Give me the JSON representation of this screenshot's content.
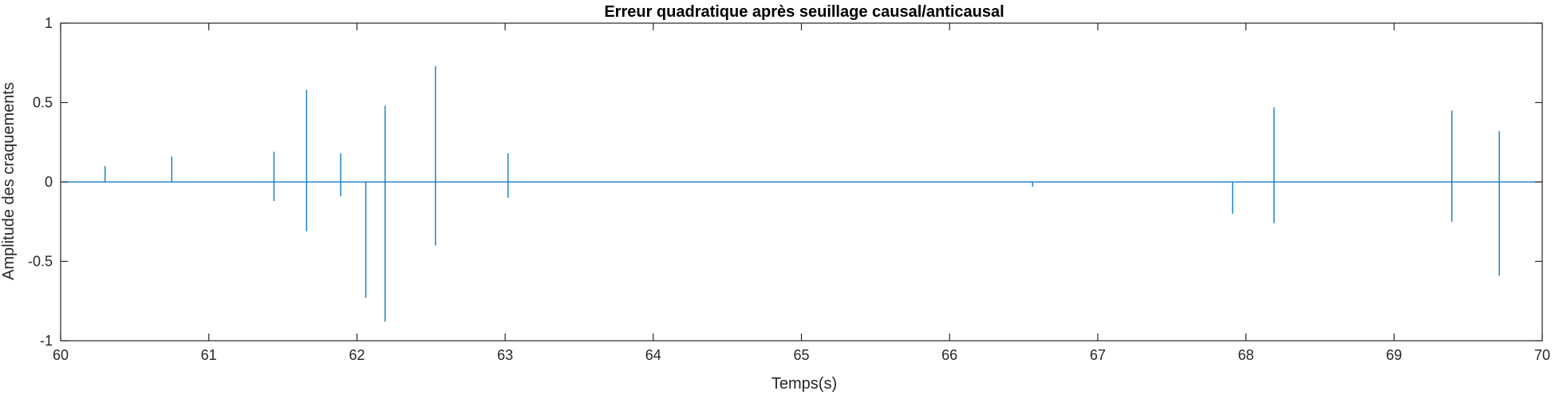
{
  "chart_data": {
    "type": "line",
    "title": "Erreur quadratique après seuillage causal/anticausal",
    "xlabel": "Temps(s)",
    "ylabel": "Amplitude des craquements",
    "xlim": [
      60,
      70
    ],
    "ylim": [
      -1,
      1
    ],
    "x_ticks": [
      60,
      61,
      62,
      63,
      64,
      65,
      66,
      67,
      68,
      69,
      70
    ],
    "x_tick_labels": [
      "60",
      "61",
      "62",
      "63",
      "64",
      "65",
      "66",
      "67",
      "68",
      "69",
      "70"
    ],
    "y_ticks": [
      1,
      0.5,
      0,
      -0.5,
      -1
    ],
    "y_tick_labels": [
      "1",
      "0.5",
      "0",
      "-0.5",
      "-1"
    ],
    "grid": false,
    "box": true,
    "series": [
      {
        "color": "#0072BD",
        "baseline": 0,
        "spikes": [
          {
            "t": 60.3,
            "max": 0.1,
            "min": 0.0
          },
          {
            "t": 60.75,
            "max": 0.16,
            "min": 0.0
          },
          {
            "t": 61.44,
            "max": 0.19,
            "min": -0.12
          },
          {
            "t": 61.66,
            "max": 0.58,
            "min": -0.31
          },
          {
            "t": 61.89,
            "max": 0.18,
            "min": -0.09
          },
          {
            "t": 62.06,
            "max": 0.0,
            "min": -0.73
          },
          {
            "t": 62.19,
            "max": 0.48,
            "min": -0.88
          },
          {
            "t": 62.53,
            "max": 0.73,
            "min": -0.4
          },
          {
            "t": 63.02,
            "max": 0.18,
            "min": -0.1
          },
          {
            "t": 66.56,
            "max": 0.0,
            "min": -0.03
          },
          {
            "t": 67.91,
            "max": 0.0,
            "min": -0.2
          },
          {
            "t": 68.19,
            "max": 0.47,
            "min": -0.26
          },
          {
            "t": 69.39,
            "max": 0.45,
            "min": -0.25
          },
          {
            "t": 69.71,
            "max": 0.32,
            "min": -0.59
          }
        ]
      }
    ]
  },
  "colors": {
    "series": "#0072BD",
    "axes": "#262626",
    "background": "#ffffff"
  }
}
